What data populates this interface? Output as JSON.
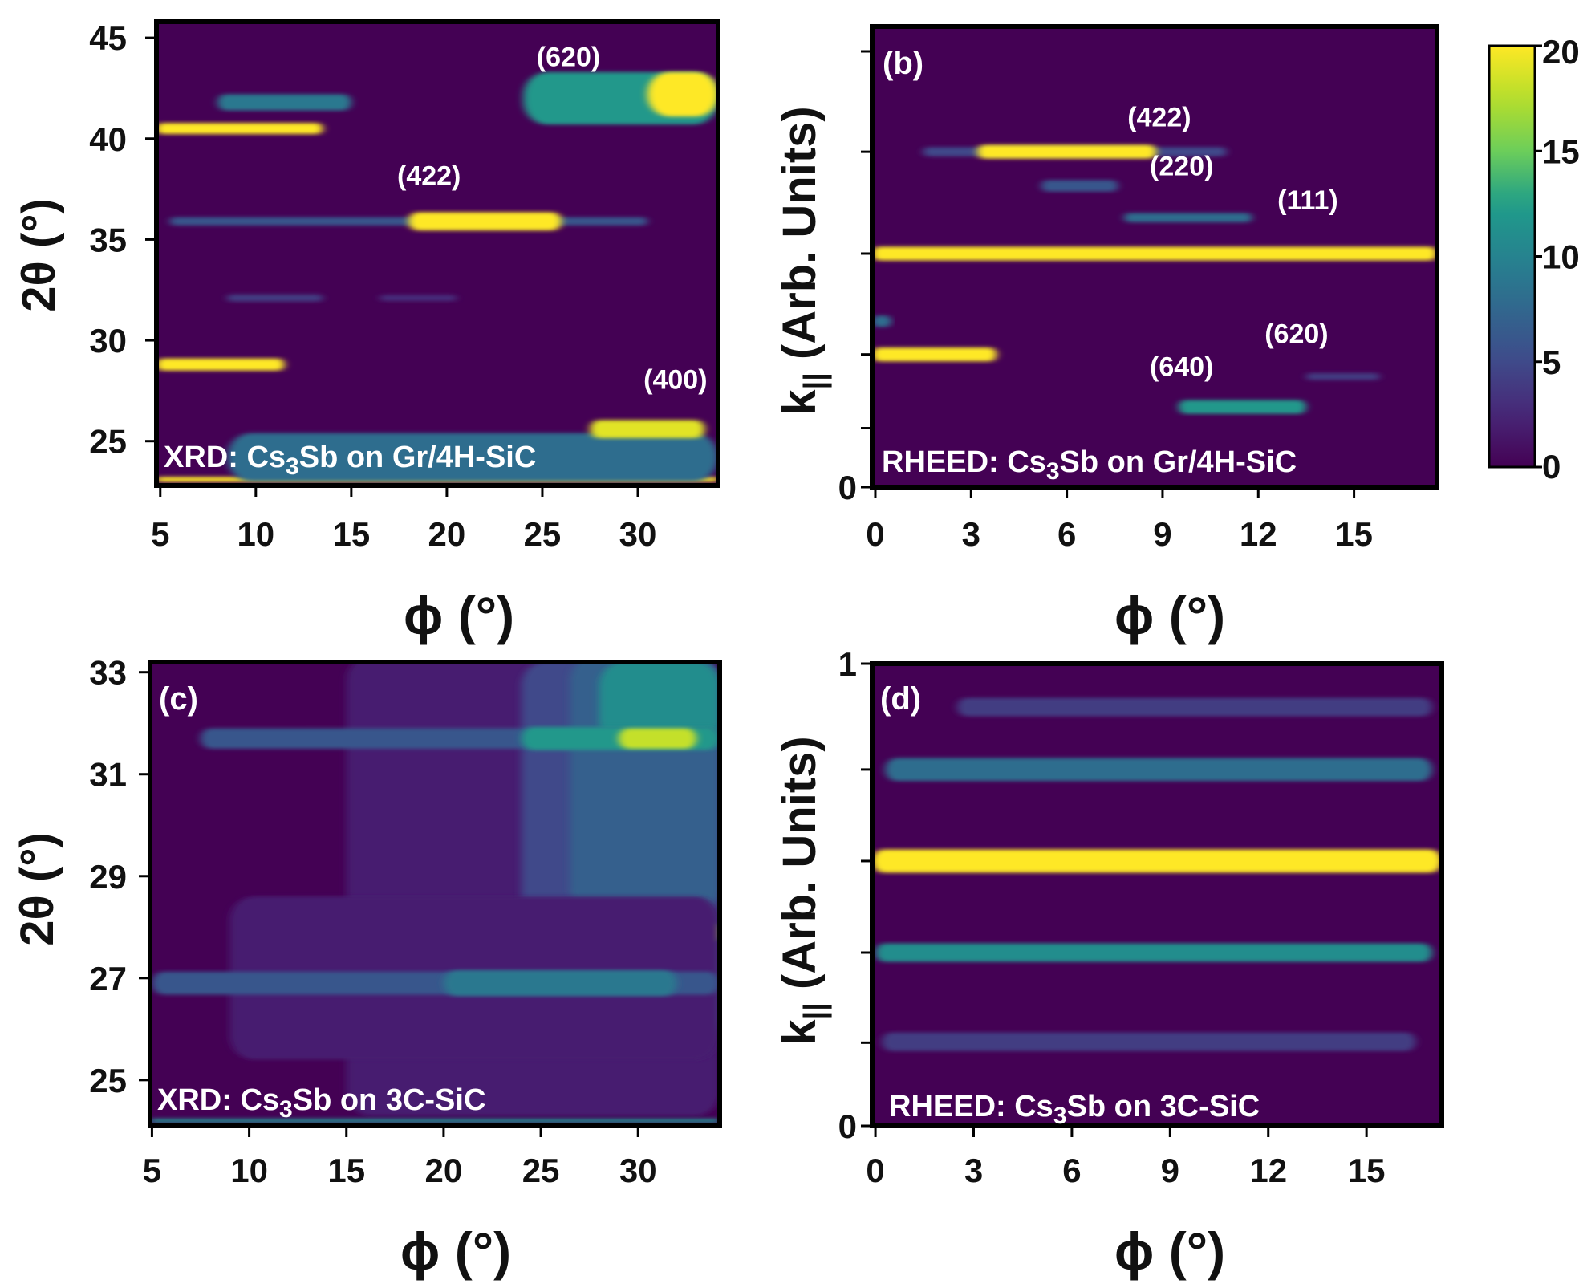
{
  "colormap": {
    "name": "viridis",
    "stops": [
      "#440154",
      "#482777",
      "#3f4a8a",
      "#31678e",
      "#26838f",
      "#1f9d8a",
      "#6cce5a",
      "#b6de2b",
      "#fee825"
    ],
    "background": "#440154"
  },
  "chart_data": [
    {
      "type": "heatmap",
      "panel_label": "",
      "caption": {
        "prefix": "XRD: Cs",
        "sub": "3",
        "suffix": "Sb on Gr/4H-SiC"
      },
      "xlabel": "ϕ (°)",
      "ylabel": "2θ (°)",
      "xlim": [
        4.8,
        34.2
      ],
      "ylim": [
        22.8,
        45.8
      ],
      "xticks": [
        "5",
        "10",
        "15",
        "20",
        "25",
        "30"
      ],
      "yticks": [
        "25",
        "30",
        "35",
        "40",
        "45"
      ],
      "features": [
        {
          "x1": 4.8,
          "x2": 34.2,
          "y": 23.1,
          "h": 0.25,
          "v": 20
        },
        {
          "x1": 8.5,
          "x2": 34.2,
          "y": 24.2,
          "h": 2.4,
          "v": 8
        },
        {
          "x1": 27.5,
          "x2": 33.5,
          "y": 25.6,
          "h": 0.9,
          "v": 19
        },
        {
          "x1": 4.8,
          "x2": 11.5,
          "y": 28.8,
          "h": 0.6,
          "v": 20
        },
        {
          "x1": 8.5,
          "x2": 13.5,
          "y": 32.1,
          "h": 0.35,
          "v": 4
        },
        {
          "x1": 16.5,
          "x2": 20.5,
          "y": 32.1,
          "h": 0.3,
          "v": 3
        },
        {
          "x1": 5.5,
          "x2": 30.5,
          "y": 35.9,
          "h": 0.4,
          "v": 6
        },
        {
          "x1": 18.0,
          "x2": 26.0,
          "y": 35.9,
          "h": 0.9,
          "v": 20
        },
        {
          "x1": 4.8,
          "x2": 13.5,
          "y": 40.5,
          "h": 0.55,
          "v": 20
        },
        {
          "x1": 8.0,
          "x2": 15.0,
          "y": 41.8,
          "h": 0.8,
          "v": 9
        },
        {
          "x1": 24.0,
          "x2": 34.2,
          "y": 42.0,
          "h": 2.6,
          "v": 12
        },
        {
          "x1": 30.5,
          "x2": 34.2,
          "y": 42.2,
          "h": 2.2,
          "v": 20
        }
      ],
      "peak_labels": [
        {
          "text": "(620)",
          "x": 24.7,
          "y": 43.6
        },
        {
          "text": "(422)",
          "x": 17.4,
          "y": 37.7
        },
        {
          "text": "(400)",
          "x": 30.3,
          "y": 27.6
        }
      ]
    },
    {
      "type": "heatmap",
      "panel_label": "(b)",
      "caption": {
        "prefix": "RHEED: Cs",
        "sub": "3",
        "suffix": "Sb on Gr/4H-SiC"
      },
      "xlabel": "ϕ (°)",
      "ylabel": "k",
      "ylabel_sub": "||",
      "ylabel_suffix": " (Arb. Units)",
      "xlim": [
        -0.1,
        17.6
      ],
      "ylim": [
        0,
        1.0
      ],
      "xticks": [
        "0",
        "3",
        "6",
        "9",
        "12",
        "15"
      ],
      "yticks": [
        "0"
      ],
      "features": [
        {
          "x1": 1.5,
          "x2": 11.0,
          "y": 0.728,
          "h": 0.02,
          "v": 5
        },
        {
          "x1": 3.2,
          "x2": 8.8,
          "y": 0.728,
          "h": 0.03,
          "v": 20
        },
        {
          "x1": 5.2,
          "x2": 7.6,
          "y": 0.654,
          "h": 0.025,
          "v": 6
        },
        {
          "x1": 7.8,
          "x2": 11.8,
          "y": 0.585,
          "h": 0.02,
          "v": 8
        },
        {
          "x1": -0.1,
          "x2": 17.6,
          "y": 0.507,
          "h": 0.03,
          "v": 20
        },
        {
          "x1": -0.1,
          "x2": 0.5,
          "y": 0.36,
          "h": 0.025,
          "v": 8
        },
        {
          "x1": -0.1,
          "x2": 3.8,
          "y": 0.288,
          "h": 0.03,
          "v": 20
        },
        {
          "x1": 9.5,
          "x2": 13.5,
          "y": 0.174,
          "h": 0.03,
          "v": 12
        },
        {
          "x1": 13.5,
          "x2": 15.8,
          "y": 0.24,
          "h": 0.015,
          "v": 4
        }
      ],
      "peak_labels": [
        {
          "text": "(422)",
          "x": 7.9,
          "y": 0.783
        },
        {
          "text": "(220)",
          "x": 8.6,
          "y": 0.677
        },
        {
          "text": "(111)",
          "x": 12.6,
          "y": 0.603
        },
        {
          "text": "(620)",
          "x": 12.2,
          "y": 0.313
        },
        {
          "text": "(640)",
          "x": 8.6,
          "y": 0.241
        }
      ]
    },
    {
      "type": "heatmap",
      "panel_label": "(c)",
      "caption": {
        "prefix": "XRD: Cs",
        "sub": "3",
        "suffix": "Sb on 3C-SiC"
      },
      "xlabel": "ϕ (°)",
      "ylabel": "2θ (°)",
      "xlim": [
        4.9,
        34.2
      ],
      "ylim": [
        24.1,
        33.2
      ],
      "xticks": [
        "5",
        "10",
        "15",
        "20",
        "25",
        "30"
      ],
      "yticks": [
        "25",
        "27",
        "29",
        "31",
        "33"
      ],
      "features": [
        {
          "x1": 15.0,
          "x2": 34.2,
          "y": 28.8,
          "h": 9.0,
          "v": 2
        },
        {
          "x1": 24.0,
          "x2": 34.2,
          "y": 29.5,
          "h": 7.4,
          "v": 5
        },
        {
          "x1": 26.5,
          "x2": 34.2,
          "y": 30.8,
          "h": 5.0,
          "v": 7
        },
        {
          "x1": 28.0,
          "x2": 34.2,
          "y": 32.4,
          "h": 1.6,
          "v": 11
        },
        {
          "x1": 7.5,
          "x2": 34.2,
          "y": 31.7,
          "h": 0.4,
          "v": 6
        },
        {
          "x1": 24.0,
          "x2": 34.2,
          "y": 31.7,
          "h": 0.45,
          "v": 12
        },
        {
          "x1": 29.0,
          "x2": 33.0,
          "y": 31.7,
          "h": 0.4,
          "v": 18
        },
        {
          "x1": 25.0,
          "x2": 34.2,
          "y": 27.9,
          "h": 0.35,
          "v": 12
        },
        {
          "x1": 32.0,
          "x2": 34.2,
          "y": 27.9,
          "h": 0.35,
          "v": 18
        },
        {
          "x1": 9.0,
          "x2": 34.2,
          "y": 27.0,
          "h": 3.2,
          "v": 2
        },
        {
          "x1": 5.0,
          "x2": 34.2,
          "y": 26.9,
          "h": 0.45,
          "v": 6
        },
        {
          "x1": 20.0,
          "x2": 32.0,
          "y": 26.9,
          "h": 0.5,
          "v": 9
        },
        {
          "x1": 4.9,
          "x2": 34.2,
          "y": 24.2,
          "h": 0.08,
          "v": 11
        }
      ],
      "peak_labels": []
    },
    {
      "type": "heatmap",
      "panel_label": "(d)",
      "caption": {
        "prefix": "RHEED: Cs",
        "sub": "3",
        "suffix": "Sb on 3C-SiC"
      },
      "xlabel": "ϕ (°)",
      "ylabel": "k",
      "ylabel_sub": "||",
      "ylabel_suffix": " (Arb. Units)",
      "xlim": [
        -0.1,
        17.3
      ],
      "ylim": [
        0,
        1.0
      ],
      "xticks": [
        "0",
        "3",
        "6",
        "9",
        "12",
        "15"
      ],
      "yticks": [
        "0",
        "1"
      ],
      "features": [
        {
          "x1": 2.5,
          "x2": 17.0,
          "y": 0.906,
          "h": 0.04,
          "v": 4
        },
        {
          "x1": 0.3,
          "x2": 17.0,
          "y": 0.771,
          "h": 0.05,
          "v": 8
        },
        {
          "x1": -0.1,
          "x2": 17.3,
          "y": 0.573,
          "h": 0.05,
          "v": 20
        },
        {
          "x1": 0.0,
          "x2": 17.0,
          "y": 0.375,
          "h": 0.04,
          "v": 11
        },
        {
          "x1": 0.2,
          "x2": 16.5,
          "y": 0.182,
          "h": 0.04,
          "v": 4
        }
      ],
      "peak_labels": []
    }
  ],
  "colorbar": {
    "min": 0,
    "max": 20,
    "ticks": [
      "0",
      "5",
      "10",
      "15",
      "20"
    ]
  }
}
